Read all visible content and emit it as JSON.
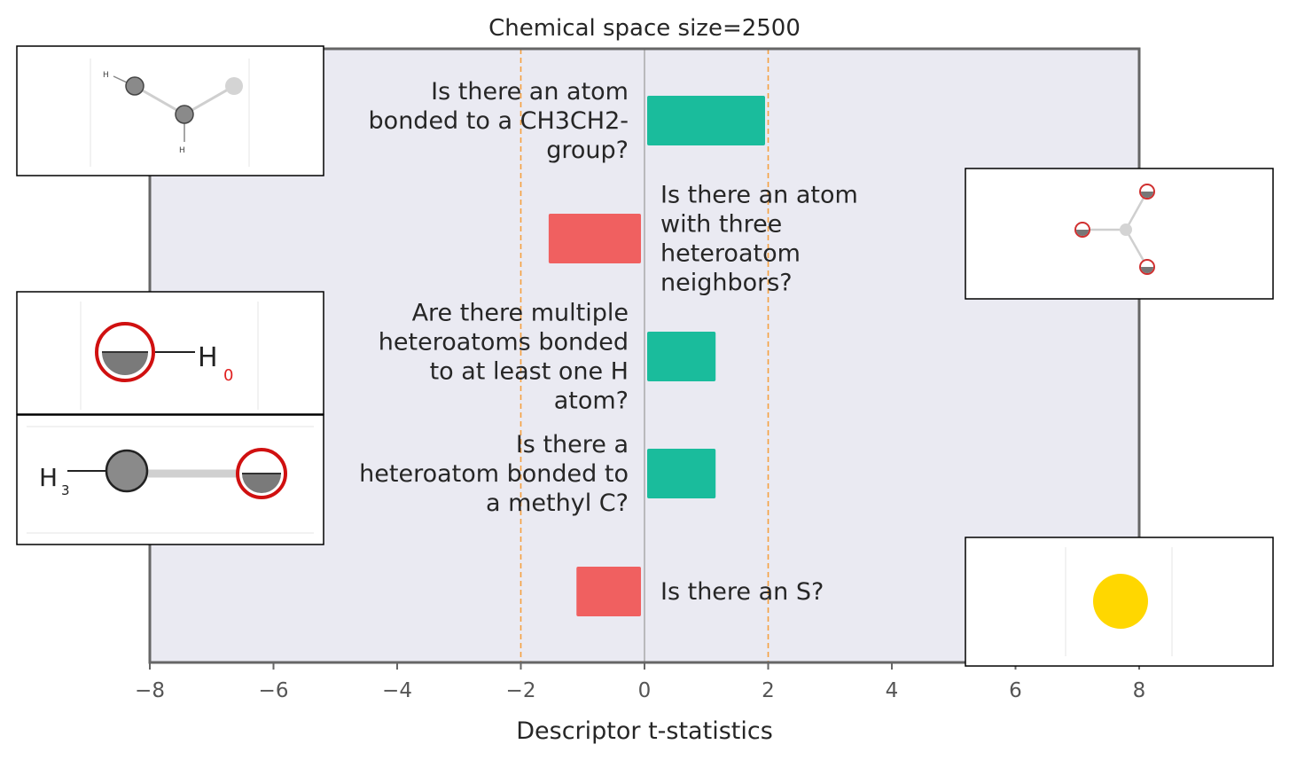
{
  "chart_data": {
    "type": "bar",
    "orientation": "horizontal",
    "title": "Chemical space size=2500",
    "xlabel": "Descriptor t-statistics",
    "ylabel": "",
    "xlim": [
      -8,
      10
    ],
    "xticks": [
      -8,
      -6,
      -4,
      -2,
      0,
      2,
      4,
      6,
      8
    ],
    "xtick_labels": [
      "−8",
      "−6",
      "−4",
      "−2",
      "0",
      "2",
      "4",
      "6",
      "8"
    ],
    "grid": false,
    "threshold_lines": [
      -2,
      2
    ],
    "categories": [
      "Is there an atom bonded to a CH3CH2- group?",
      "Is there an atom with three heteroatom neighbors?",
      "Are there multiple heteroatoms bonded to at least one H atom?",
      "Is there a heteroatom bonded to a methyl C?",
      "Is there an S?"
    ],
    "label_lines": [
      [
        "Is there an atom",
        "bonded to a CH3CH2-",
        "group?"
      ],
      [
        "Is there an atom",
        "with three",
        "heteroatom",
        "neighbors?"
      ],
      [
        "Are there multiple",
        "heteroatoms bonded",
        "to at least one H",
        "atom?"
      ],
      [
        "Is there a",
        "heteroatom bonded to",
        "a methyl C?"
      ],
      [
        "Is there an S?"
      ]
    ],
    "values": [
      1.95,
      -1.55,
      1.15,
      1.15,
      -1.1
    ],
    "colors": {
      "positive": "#1abc9c",
      "negative": "#f06060",
      "threshold": "#f5a040",
      "background": "#eaeaf2",
      "frame": "#666666",
      "zero_line": "#999999"
    }
  },
  "insets": [
    {
      "name": "inset-ch3ch2-group",
      "labels": [
        "H",
        "H"
      ]
    },
    {
      "name": "inset-three-heteroatom-neighbors",
      "labels": []
    },
    {
      "name": "inset-multiple-heteroatoms-h",
      "labels": [
        "H",
        "0"
      ]
    },
    {
      "name": "inset-heteroatom-methyl-c",
      "labels": [
        "H",
        "3"
      ]
    },
    {
      "name": "inset-sulfur-atom",
      "labels": []
    }
  ]
}
